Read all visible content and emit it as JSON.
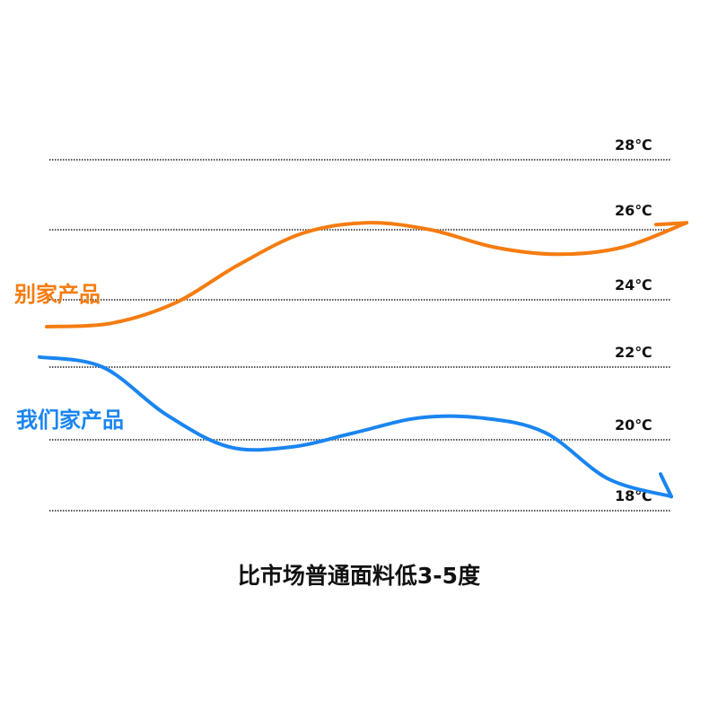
{
  "chart_data": {
    "type": "line",
    "title": "",
    "xlabel": "",
    "ylabel": "",
    "caption": "比市场普通面料低3-5度",
    "y_ticks": [
      "28℃",
      "26℃",
      "24℃",
      "22℃",
      "20℃",
      "18℃"
    ],
    "ylim": [
      17.5,
      28.5
    ],
    "grid": true,
    "x": [
      0,
      0.1,
      0.2,
      0.3,
      0.4,
      0.5,
      0.6,
      0.7,
      0.8,
      0.9,
      1.0
    ],
    "series": [
      {
        "name": "别家产品",
        "color": "#f57c10",
        "values": [
          23.2,
          23.3,
          23.9,
          25.0,
          25.9,
          26.2,
          26.0,
          25.5,
          25.3,
          25.5,
          26.2
        ]
      },
      {
        "name": "我们家产品",
        "color": "#1a85f0",
        "values": [
          22.3,
          22.0,
          20.7,
          19.8,
          19.8,
          20.2,
          20.6,
          20.6,
          20.2,
          18.9,
          18.4
        ]
      }
    ]
  }
}
